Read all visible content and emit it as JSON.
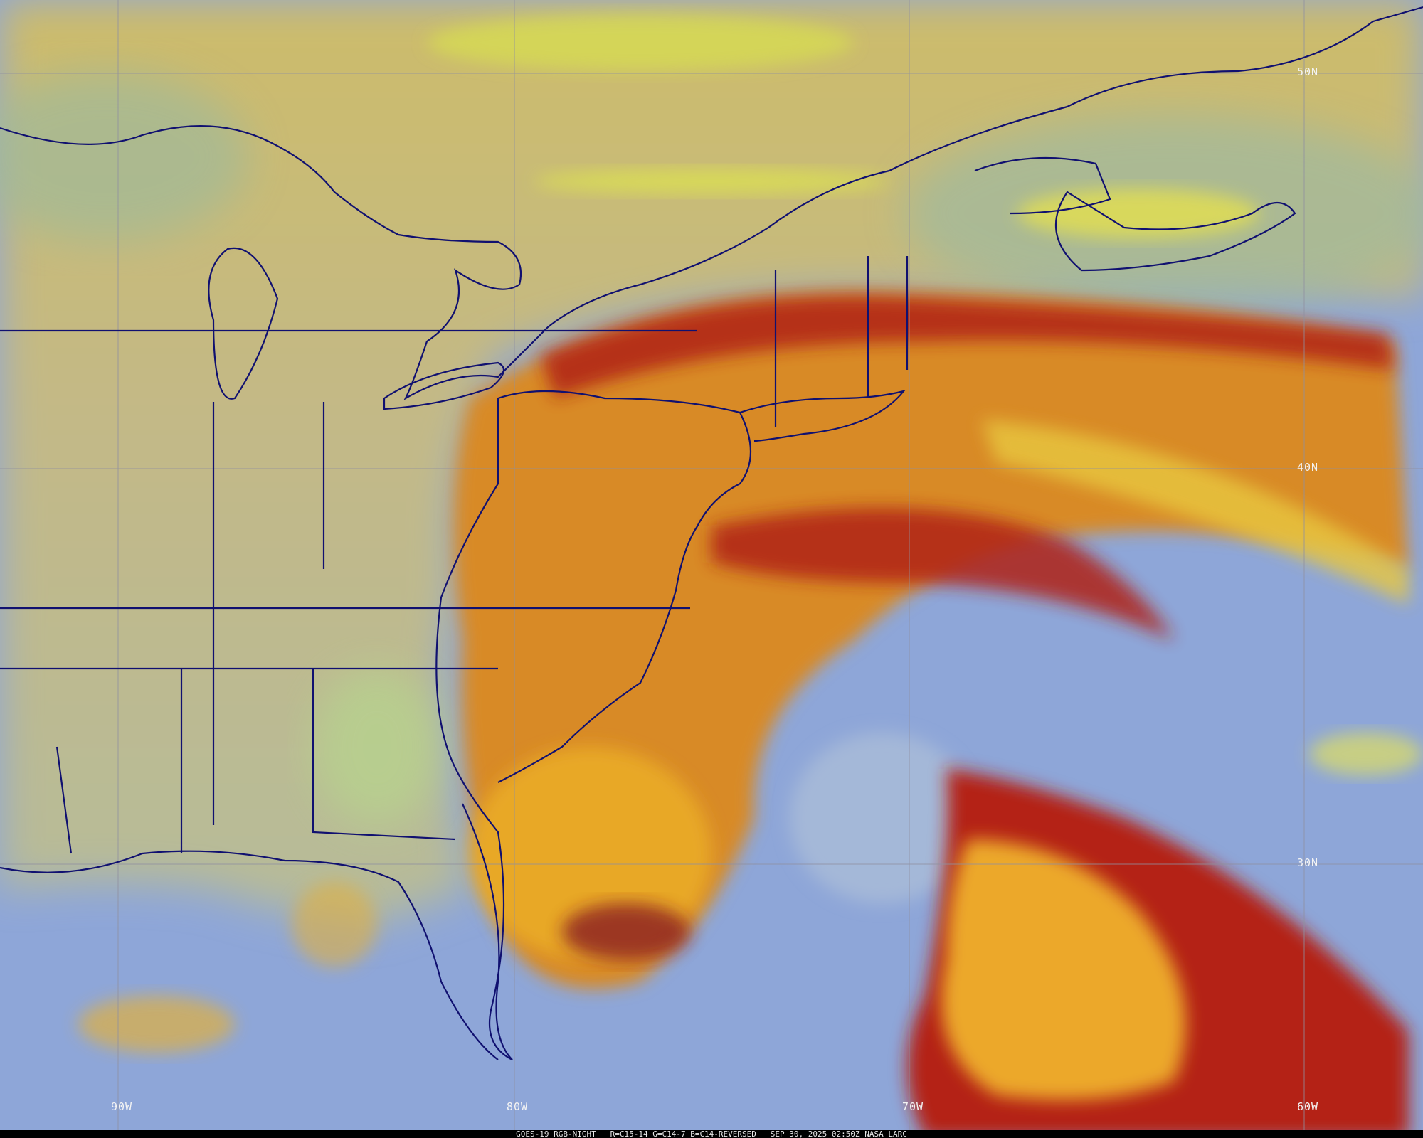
{
  "caption": {
    "satellite": "GOES-19 RGB-NIGHT",
    "channels": "R=C15-14 G=C14-7 B=C14-REVERSED",
    "datetime": "SEP 30, 2025 02:50Z NASA LARC"
  },
  "grid_labels": {
    "lat": [
      "50N",
      "40N",
      "30N"
    ],
    "lon": [
      "90W",
      "80W",
      "70W",
      "60W"
    ]
  },
  "colors": {
    "land": "#c8b47c",
    "ocean": "#8fa9c8",
    "cloud_high": "#e0a020",
    "cloud_red": "#b02418",
    "low_cloud": "#d8e050",
    "borders": "#101070",
    "grid": "#9090a0"
  }
}
